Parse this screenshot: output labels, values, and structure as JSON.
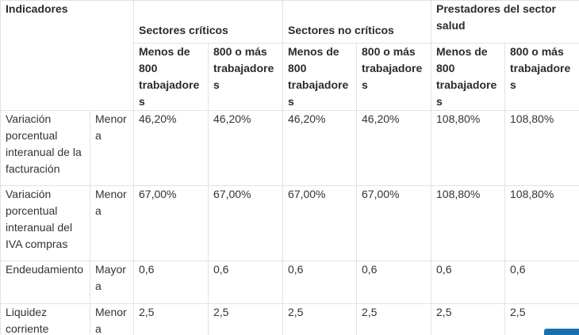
{
  "table": {
    "indicator_header": "Indicadores",
    "groups": [
      {
        "label": "Sectores críticos"
      },
      {
        "label": "Sectores no críticos"
      },
      {
        "label": "Prestadores del sector salud"
      }
    ],
    "subheaders": [
      "Menos de 800 trabajadores",
      "800 o más trabajadores",
      "Menos de 800 trabajadores",
      "800 o más trabajadores",
      "Menos de 800 trabajadores",
      "800 o más trabajadores"
    ],
    "rows": [
      {
        "indicator": "Variación porcentual interanual de la facturación",
        "condition": "Menor a",
        "values": [
          "46,20%",
          "46,20%",
          "46,20%",
          "46,20%",
          "108,80%",
          "108,80%"
        ]
      },
      {
        "indicator": "Variación porcentual interanual del IVA compras",
        "condition": "Menor a",
        "values": [
          "67,00%",
          "67,00%",
          "67,00%",
          "67,00%",
          "108,80%",
          "108,80%"
        ]
      },
      {
        "indicator": "Endeudamiento",
        "condition": "Mayor a",
        "values": [
          "0,6",
          "0,6",
          "0,6",
          "0,6",
          "0,6",
          "0,6"
        ]
      },
      {
        "indicator": "Liquidez corriente",
        "condition": "Menor a",
        "values": [
          "2,5",
          "2,5",
          "2,5",
          "2,5",
          "2,5",
          "2,5"
        ]
      }
    ]
  },
  "colors": {
    "border": "#dfe3e6",
    "text": "#333333",
    "button": "#1a6fb0"
  }
}
